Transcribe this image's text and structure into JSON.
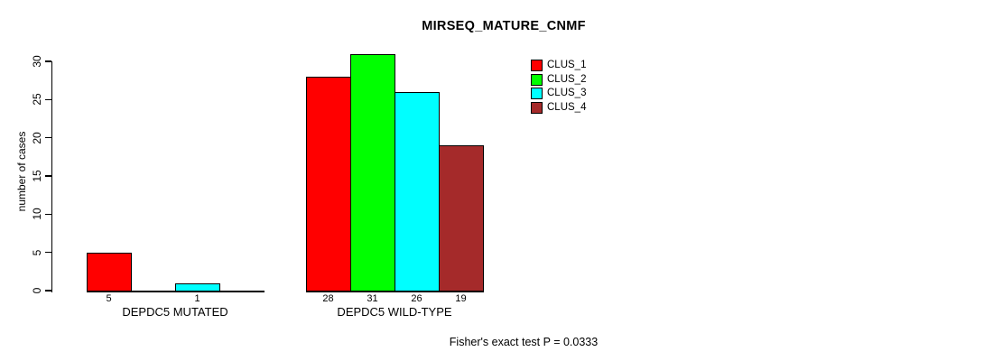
{
  "chart_data": {
    "type": "bar",
    "title": "MIRSEQ_MATURE_CNMF",
    "ylabel": "number of cases",
    "xlabel": "",
    "ylim": [
      0,
      30
    ],
    "yticks": [
      0,
      5,
      10,
      15,
      20,
      25,
      30
    ],
    "grid": false,
    "legend_position": "top-right",
    "categories": [
      "DEPDC5 MUTATED",
      "DEPDC5 WILD-TYPE"
    ],
    "series": [
      {
        "name": "CLUS_1",
        "color": "#FF0000",
        "values": [
          5,
          28
        ]
      },
      {
        "name": "CLUS_2",
        "color": "#00FF00",
        "values": [
          0,
          31
        ]
      },
      {
        "name": "CLUS_3",
        "color": "#00FFFF",
        "values": [
          1,
          26
        ]
      },
      {
        "name": "CLUS_4",
        "color": "#A52A2A",
        "values": [
          0,
          19
        ]
      }
    ],
    "bar_value_labels_shown": [
      "5",
      "1",
      "28",
      "31",
      "26",
      "19"
    ],
    "annotation": "Fisher's exact test P = 0.0333"
  }
}
